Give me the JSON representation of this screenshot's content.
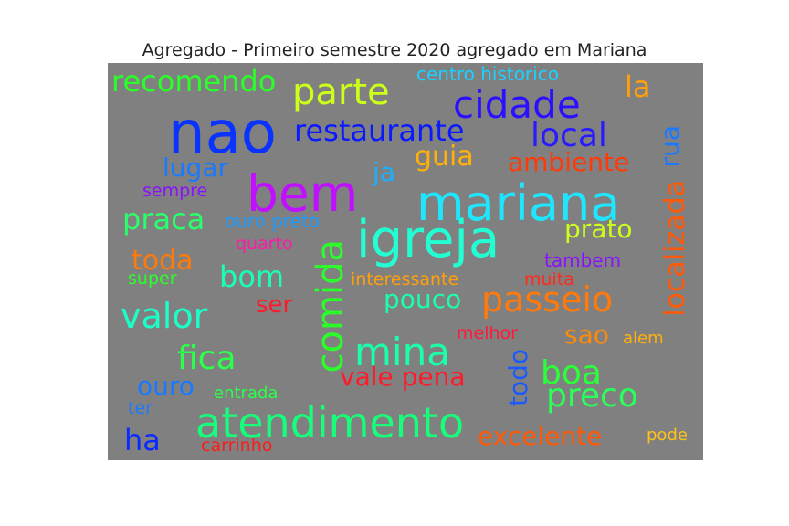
{
  "chart_data": {
    "type": "wordcloud",
    "title": "Agregado - Primeiro semestre 2020 agregado em Mariana",
    "background": "#808080",
    "words": [
      {
        "text": "nao",
        "weight": 64,
        "color": "#0a33ff",
        "orientation": "horizontal"
      },
      {
        "text": "igreja",
        "weight": 56,
        "color": "#22ffd2",
        "orientation": "horizontal"
      },
      {
        "text": "mariana",
        "weight": 54,
        "color": "#1ee6ff",
        "orientation": "horizontal"
      },
      {
        "text": "bem",
        "weight": 55,
        "color": "#c010ff",
        "orientation": "horizontal"
      },
      {
        "text": "atendimento",
        "weight": 46,
        "color": "#16ff7a",
        "orientation": "horizontal"
      },
      {
        "text": "cidade",
        "weight": 42,
        "color": "#2a10ff",
        "orientation": "horizontal"
      },
      {
        "text": "parte",
        "weight": 40,
        "color": "#ccff1a",
        "orientation": "horizontal"
      },
      {
        "text": "mina",
        "weight": 42,
        "color": "#1affa8",
        "orientation": "horizontal"
      },
      {
        "text": "comida",
        "weight": 40,
        "color": "#2aff2a",
        "orientation": "vertical"
      },
      {
        "text": "passeio",
        "weight": 38,
        "color": "#ff7a0a",
        "orientation": "horizontal"
      },
      {
        "text": "valor",
        "weight": 38,
        "color": "#1affc8",
        "orientation": "horizontal"
      },
      {
        "text": "preco",
        "weight": 36,
        "color": "#2aff5a",
        "orientation": "horizontal"
      },
      {
        "text": "local",
        "weight": 36,
        "color": "#2a1aff",
        "orientation": "horizontal"
      },
      {
        "text": "fica",
        "weight": 36,
        "color": "#2aff4a",
        "orientation": "horizontal"
      },
      {
        "text": "boa",
        "weight": 36,
        "color": "#2aff3a",
        "orientation": "horizontal"
      },
      {
        "text": "restaurante",
        "weight": 32,
        "color": "#0a1aff",
        "orientation": "horizontal"
      },
      {
        "text": "recomendo",
        "weight": 32,
        "color": "#2aff2a",
        "orientation": "horizontal"
      },
      {
        "text": "praca",
        "weight": 32,
        "color": "#2aff6a",
        "orientation": "horizontal"
      },
      {
        "text": "bom",
        "weight": 32,
        "color": "#1affb8",
        "orientation": "horizontal"
      },
      {
        "text": "la",
        "weight": 32,
        "color": "#ffa00a",
        "orientation": "horizontal"
      },
      {
        "text": "ha",
        "weight": 32,
        "color": "#0a2aff",
        "orientation": "horizontal"
      },
      {
        "text": "localizada",
        "weight": 30,
        "color": "#ff5a0a",
        "orientation": "vertical"
      },
      {
        "text": "guia",
        "weight": 30,
        "color": "#ffb00a",
        "orientation": "horizontal"
      },
      {
        "text": "toda",
        "weight": 30,
        "color": "#ff7a0a",
        "orientation": "horizontal"
      },
      {
        "text": "excelente",
        "weight": 28,
        "color": "#ff5a0a",
        "orientation": "horizontal"
      },
      {
        "text": "vale pena",
        "weight": 28,
        "color": "#ff1a2a",
        "orientation": "horizontal"
      },
      {
        "text": "todo",
        "weight": 28,
        "color": "#1a5aff",
        "orientation": "vertical"
      },
      {
        "text": "ambiente",
        "weight": 28,
        "color": "#ff3a0a",
        "orientation": "horizontal"
      },
      {
        "text": "lugar",
        "weight": 28,
        "color": "#1a7aff",
        "orientation": "horizontal"
      },
      {
        "text": "pouco",
        "weight": 28,
        "color": "#1affa8",
        "orientation": "horizontal"
      },
      {
        "text": "rua",
        "weight": 28,
        "color": "#1a7aff",
        "orientation": "vertical"
      },
      {
        "text": "ja",
        "weight": 28,
        "color": "#1ab0ff",
        "orientation": "horizontal"
      },
      {
        "text": "prato",
        "weight": 28,
        "color": "#ccff1a",
        "orientation": "horizontal"
      },
      {
        "text": "ouro",
        "weight": 28,
        "color": "#1a7aff",
        "orientation": "horizontal"
      },
      {
        "text": "sao",
        "weight": 28,
        "color": "#ff8a0a",
        "orientation": "horizontal"
      },
      {
        "text": "ser",
        "weight": 26,
        "color": "#ff1a2a",
        "orientation": "horizontal"
      },
      {
        "text": "ouro preto",
        "weight": 20,
        "color": "#1a9aff",
        "orientation": "horizontal"
      },
      {
        "text": "centro historico",
        "weight": 20,
        "color": "#1ad2ff",
        "orientation": "horizontal"
      },
      {
        "text": "tambem",
        "weight": 20,
        "color": "#8a10ff",
        "orientation": "horizontal"
      },
      {
        "text": "sempre",
        "weight": 19,
        "color": "#8a10ff",
        "orientation": "horizontal"
      },
      {
        "text": "quarto",
        "weight": 19,
        "color": "#ff1aa8",
        "orientation": "horizontal"
      },
      {
        "text": "interessante",
        "weight": 19,
        "color": "#ffa00a",
        "orientation": "horizontal"
      },
      {
        "text": "muita",
        "weight": 19,
        "color": "#ff2a1a",
        "orientation": "horizontal"
      },
      {
        "text": "melhor",
        "weight": 19,
        "color": "#ff1a3a",
        "orientation": "horizontal"
      },
      {
        "text": "carrinho",
        "weight": 19,
        "color": "#ff1a1a",
        "orientation": "horizontal"
      },
      {
        "text": "super",
        "weight": 19,
        "color": "#2aff2a",
        "orientation": "horizontal"
      },
      {
        "text": "entrada",
        "weight": 18,
        "color": "#2aff4a",
        "orientation": "horizontal"
      },
      {
        "text": "ter",
        "weight": 19,
        "color": "#1a7aff",
        "orientation": "horizontal"
      },
      {
        "text": "alem",
        "weight": 18,
        "color": "#ffb00a",
        "orientation": "horizontal"
      },
      {
        "text": "pode",
        "weight": 18,
        "color": "#ffc21a",
        "orientation": "horizontal"
      }
    ]
  }
}
